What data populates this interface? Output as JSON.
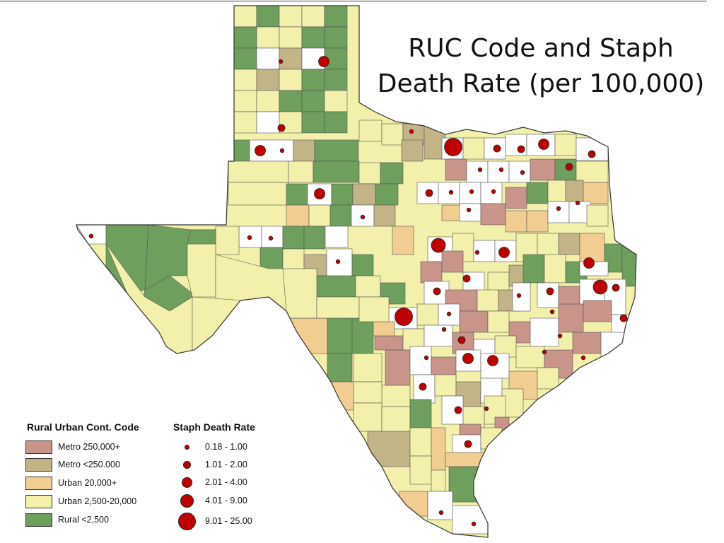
{
  "title": {
    "line1": "RUC Code and Staph",
    "line2": "Death Rate (per 100,000)"
  },
  "legend": {
    "ruc_heading": "Rural Urban Cont. Code",
    "rate_heading": "Staph Death Rate",
    "ruc_classes": [
      {
        "label": "Metro 250,000+",
        "color": "#c9948a"
      },
      {
        "label": "Metro <250.000",
        "color": "#c2b486"
      },
      {
        "label": "Urban 20,000+",
        "color": "#f2cd91"
      },
      {
        "label": "Urban 2,500-20,000",
        "color": "#f2f0aa"
      },
      {
        "label": "Rural <2,500",
        "color": "#6e9f5c"
      }
    ],
    "rate_classes": [
      {
        "label": "0.18 - 1.00",
        "size": 1
      },
      {
        "label": "1.01 - 2.00",
        "size": 2
      },
      {
        "label": "2.01 - 4.00",
        "size": 3
      },
      {
        "label": "4.01 - 9.00",
        "size": 4
      },
      {
        "label": "9.01 - 25.00",
        "size": 5
      }
    ]
  },
  "colors": {
    "dot": "#c00000",
    "no_data": "#ffffff",
    "border": "#555555"
  }
}
